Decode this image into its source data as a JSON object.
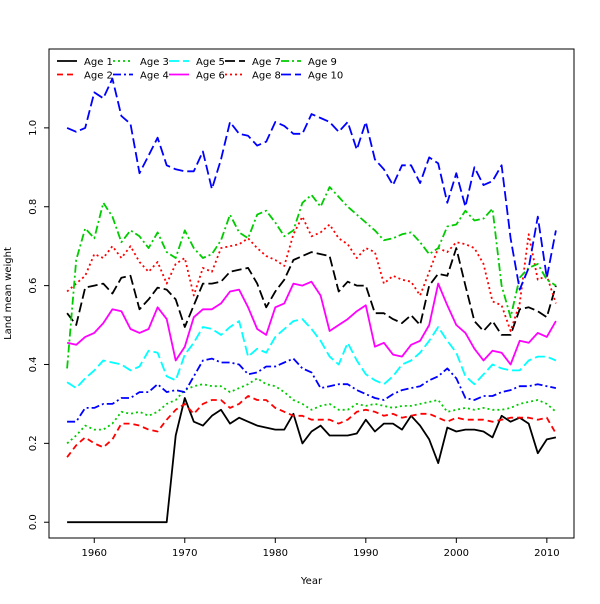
{
  "chart_data": {
    "type": "line",
    "title": "",
    "xlabel": "Year",
    "ylabel": "Land mean weight",
    "xlim": [
      1955,
      2013
    ],
    "ylim": [
      -0.04,
      1.2
    ],
    "xticks": [
      1960,
      1970,
      1980,
      1990,
      2000,
      2010
    ],
    "yticks": [
      0.0,
      0.2,
      0.4,
      0.6,
      0.8,
      1.0
    ],
    "xtick_labels": [
      "1960",
      "1970",
      "1980",
      "1990",
      "2000",
      "2010"
    ],
    "ytick_labels": [
      "0.0",
      "0.2",
      "0.4",
      "0.6",
      "0.8",
      "1.0"
    ],
    "grid": false,
    "legend_position": "top-left",
    "x": [
      1957,
      1958,
      1959,
      1960,
      1961,
      1962,
      1963,
      1964,
      1965,
      1966,
      1967,
      1968,
      1969,
      1970,
      1971,
      1972,
      1973,
      1974,
      1975,
      1976,
      1977,
      1978,
      1979,
      1980,
      1981,
      1982,
      1983,
      1984,
      1985,
      1986,
      1987,
      1988,
      1989,
      1990,
      1991,
      1992,
      1993,
      1994,
      1995,
      1996,
      1997,
      1998,
      1999,
      2000,
      2001,
      2002,
      2003,
      2004,
      2005,
      2006,
      2007,
      2008,
      2009,
      2010,
      2011
    ],
    "series": [
      {
        "name": "Age 1",
        "color": "#000000",
        "dash": "solid",
        "values": [
          0.0,
          0.0,
          0.0,
          0.0,
          0.0,
          0.0,
          0.0,
          0.0,
          0.0,
          0.0,
          0.0,
          0.0,
          0.22,
          0.315,
          0.255,
          0.245,
          0.27,
          0.285,
          0.25,
          0.265,
          0.255,
          0.245,
          0.24,
          0.235,
          0.235,
          0.275,
          0.2,
          0.23,
          0.245,
          0.22,
          0.22,
          0.22,
          0.225,
          0.26,
          0.23,
          0.25,
          0.25,
          0.235,
          0.27,
          0.245,
          0.21,
          0.15,
          0.24,
          0.23,
          0.235,
          0.235,
          0.23,
          0.215,
          0.27,
          0.255,
          0.265,
          0.25,
          0.175,
          0.21,
          0.215
        ]
      },
      {
        "name": "Age 2",
        "color": "#ff0000",
        "dash": "dashed",
        "values": [
          0.165,
          0.195,
          0.215,
          0.2,
          0.19,
          0.21,
          0.25,
          0.25,
          0.245,
          0.235,
          0.23,
          0.26,
          0.285,
          0.3,
          0.275,
          0.3,
          0.31,
          0.31,
          0.29,
          0.3,
          0.32,
          0.31,
          0.31,
          0.29,
          0.28,
          0.27,
          0.27,
          0.26,
          0.26,
          0.26,
          0.25,
          0.26,
          0.28,
          0.285,
          0.28,
          0.27,
          0.275,
          0.265,
          0.27,
          0.275,
          0.275,
          0.265,
          0.255,
          0.265,
          0.26,
          0.26,
          0.26,
          0.255,
          0.26,
          0.265,
          0.265,
          0.265,
          0.26,
          0.265,
          0.225
        ]
      },
      {
        "name": "Age 3",
        "color": "#00cc00",
        "dash": "dotted",
        "values": [
          0.2,
          0.22,
          0.245,
          0.235,
          0.235,
          0.25,
          0.28,
          0.275,
          0.28,
          0.27,
          0.28,
          0.3,
          0.31,
          0.335,
          0.345,
          0.35,
          0.345,
          0.345,
          0.33,
          0.34,
          0.35,
          0.365,
          0.35,
          0.345,
          0.33,
          0.31,
          0.3,
          0.285,
          0.295,
          0.3,
          0.285,
          0.285,
          0.3,
          0.295,
          0.3,
          0.295,
          0.29,
          0.295,
          0.295,
          0.3,
          0.305,
          0.31,
          0.28,
          0.285,
          0.29,
          0.285,
          0.29,
          0.285,
          0.285,
          0.29,
          0.3,
          0.305,
          0.31,
          0.3,
          0.28
        ]
      },
      {
        "name": "Age 4",
        "color": "#0000ff",
        "dash": "dashdot",
        "values": [
          0.255,
          0.255,
          0.29,
          0.29,
          0.3,
          0.3,
          0.315,
          0.315,
          0.33,
          0.33,
          0.35,
          0.33,
          0.335,
          0.33,
          0.37,
          0.41,
          0.415,
          0.405,
          0.405,
          0.4,
          0.375,
          0.38,
          0.395,
          0.395,
          0.405,
          0.415,
          0.39,
          0.38,
          0.34,
          0.345,
          0.35,
          0.35,
          0.335,
          0.325,
          0.315,
          0.31,
          0.325,
          0.335,
          0.34,
          0.345,
          0.36,
          0.37,
          0.39,
          0.365,
          0.315,
          0.31,
          0.32,
          0.32,
          0.33,
          0.335,
          0.345,
          0.345,
          0.35,
          0.345,
          0.34
        ]
      },
      {
        "name": "Age 5",
        "color": "#00ffff",
        "dash": "longdash",
        "values": [
          0.355,
          0.34,
          0.365,
          0.385,
          0.41,
          0.405,
          0.4,
          0.385,
          0.395,
          0.435,
          0.43,
          0.37,
          0.36,
          0.425,
          0.455,
          0.495,
          0.49,
          0.475,
          0.495,
          0.51,
          0.42,
          0.44,
          0.43,
          0.47,
          0.49,
          0.51,
          0.515,
          0.49,
          0.46,
          0.42,
          0.4,
          0.455,
          0.41,
          0.375,
          0.36,
          0.35,
          0.37,
          0.4,
          0.41,
          0.43,
          0.46,
          0.495,
          0.46,
          0.43,
          0.37,
          0.35,
          0.375,
          0.4,
          0.39,
          0.385,
          0.385,
          0.41,
          0.42,
          0.42,
          0.41
        ]
      },
      {
        "name": "Age 6",
        "color": "#ff00ff",
        "dash": "solid",
        "values": [
          0.455,
          0.45,
          0.47,
          0.48,
          0.505,
          0.54,
          0.535,
          0.49,
          0.48,
          0.49,
          0.545,
          0.515,
          0.41,
          0.445,
          0.52,
          0.54,
          0.54,
          0.555,
          0.585,
          0.59,
          0.545,
          0.49,
          0.475,
          0.545,
          0.555,
          0.605,
          0.6,
          0.61,
          0.575,
          0.485,
          0.5,
          0.515,
          0.535,
          0.55,
          0.445,
          0.455,
          0.425,
          0.42,
          0.45,
          0.46,
          0.5,
          0.605,
          0.55,
          0.5,
          0.48,
          0.44,
          0.41,
          0.435,
          0.43,
          0.4,
          0.46,
          0.455,
          0.48,
          0.47,
          0.51
        ]
      },
      {
        "name": "Age 7",
        "color": "#000000",
        "dash": "longdash",
        "values": [
          0.53,
          0.5,
          0.595,
          0.6,
          0.605,
          0.58,
          0.62,
          0.625,
          0.54,
          0.565,
          0.595,
          0.59,
          0.565,
          0.495,
          0.55,
          0.605,
          0.605,
          0.61,
          0.635,
          0.64,
          0.645,
          0.605,
          0.545,
          0.585,
          0.615,
          0.665,
          0.675,
          0.685,
          0.68,
          0.675,
          0.585,
          0.61,
          0.6,
          0.6,
          0.53,
          0.53,
          0.515,
          0.505,
          0.525,
          0.5,
          0.6,
          0.63,
          0.625,
          0.695,
          0.6,
          0.51,
          0.485,
          0.51,
          0.475,
          0.475,
          0.54,
          0.545,
          0.535,
          0.52,
          0.6
        ]
      },
      {
        "name": "Age 8",
        "color": "#ff0000",
        "dash": "dotted",
        "values": [
          0.585,
          0.605,
          0.625,
          0.68,
          0.67,
          0.7,
          0.67,
          0.7,
          0.66,
          0.635,
          0.66,
          0.605,
          0.655,
          0.67,
          0.575,
          0.645,
          0.635,
          0.695,
          0.7,
          0.705,
          0.72,
          0.695,
          0.675,
          0.665,
          0.65,
          0.73,
          0.775,
          0.725,
          0.735,
          0.755,
          0.72,
          0.705,
          0.67,
          0.695,
          0.685,
          0.605,
          0.625,
          0.615,
          0.61,
          0.575,
          0.635,
          0.695,
          0.685,
          0.71,
          0.705,
          0.695,
          0.655,
          0.56,
          0.55,
          0.485,
          0.555,
          0.73,
          0.615,
          0.625,
          0.555
        ]
      },
      {
        "name": "Age 9",
        "color": "#00cc00",
        "dash": "dashdot",
        "values": [
          0.39,
          0.665,
          0.745,
          0.72,
          0.81,
          0.775,
          0.71,
          0.74,
          0.725,
          0.695,
          0.735,
          0.685,
          0.67,
          0.74,
          0.695,
          0.67,
          0.68,
          0.715,
          0.78,
          0.735,
          0.72,
          0.78,
          0.79,
          0.76,
          0.725,
          0.74,
          0.81,
          0.83,
          0.8,
          0.85,
          0.825,
          0.8,
          0.78,
          0.76,
          0.74,
          0.715,
          0.72,
          0.73,
          0.735,
          0.71,
          0.68,
          0.695,
          0.75,
          0.755,
          0.79,
          0.765,
          0.77,
          0.795,
          0.6,
          0.52,
          0.62,
          0.645,
          0.655,
          0.615,
          0.6
        ]
      },
      {
        "name": "Age 10",
        "color": "#0000ff",
        "dash": "longdash",
        "values": [
          1.0,
          0.99,
          1.0,
          1.09,
          1.075,
          1.125,
          1.03,
          1.01,
          0.885,
          0.93,
          0.975,
          0.905,
          0.895,
          0.89,
          0.89,
          0.94,
          0.845,
          0.92,
          1.015,
          0.985,
          0.98,
          0.955,
          0.965,
          1.015,
          1.005,
          0.985,
          0.985,
          1.035,
          1.025,
          1.015,
          0.99,
          1.015,
          0.945,
          1.015,
          0.92,
          0.895,
          0.855,
          0.905,
          0.905,
          0.86,
          0.925,
          0.91,
          0.81,
          0.885,
          0.8,
          0.9,
          0.855,
          0.865,
          0.905,
          0.72,
          0.59,
          0.645,
          0.775,
          0.62,
          0.74
        ]
      }
    ]
  }
}
